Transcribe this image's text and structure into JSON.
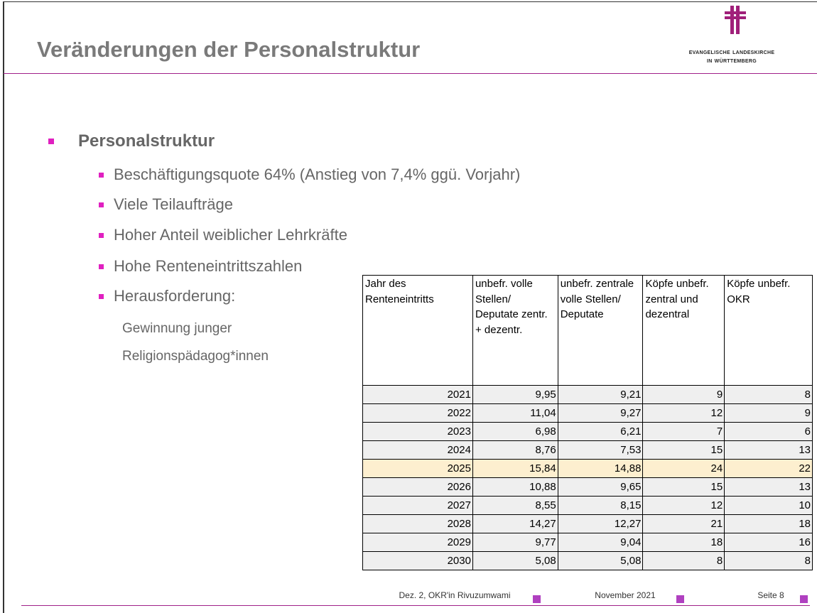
{
  "header": {
    "title": "Veränderungen der Personalstruktur",
    "logo_line1": "Evangelische Landeskirche",
    "logo_line2": "In Württemberg"
  },
  "bullets": {
    "heading": "Personalstruktur",
    "items": [
      "Beschäftigungsquote 64% (Anstieg von 7,4% ggü. Vorjahr)",
      "Viele Teilaufträge",
      "Hoher Anteil weiblicher Lehrkräfte",
      "Hohe Renteneintrittszahlen",
      "Herausforderung:"
    ],
    "sub_lines": [
      "Gewinnung junger",
      "Religionspädagog*innen"
    ]
  },
  "table": {
    "columns": [
      "Jahr des Renteneintritts",
      "unbefr. volle Stellen/ Deputate zentr. + dezentr.",
      "unbefr. zentrale volle Stellen/ Deputate",
      "Köpfe unbefr. zentral und dezentral",
      "Köpfe unbefr. OKR"
    ],
    "rows": [
      [
        "2021",
        "9,95",
        "9,21",
        "9",
        "8"
      ],
      [
        "2022",
        "11,04",
        "9,27",
        "12",
        "9"
      ],
      [
        "2023",
        "6,98",
        "6,21",
        "7",
        "6"
      ],
      [
        "2024",
        "8,76",
        "7,53",
        "15",
        "13"
      ],
      [
        "2025",
        "15,84",
        "14,88",
        "24",
        "22"
      ],
      [
        "2026",
        "10,88",
        "9,65",
        "15",
        "13"
      ],
      [
        "2027",
        "8,55",
        "8,15",
        "12",
        "10"
      ],
      [
        "2028",
        "14,27",
        "12,27",
        "21",
        "18"
      ],
      [
        "2029",
        "9,77",
        "9,04",
        "18",
        "16"
      ],
      [
        "2030",
        "5,08",
        "5,08",
        "8",
        "8"
      ]
    ],
    "highlighted_row": "2025"
  },
  "footer": {
    "author": "Dez. 2, OKR'in Rivuzumwami",
    "date": "November 2021",
    "page": "Seite 8"
  }
}
